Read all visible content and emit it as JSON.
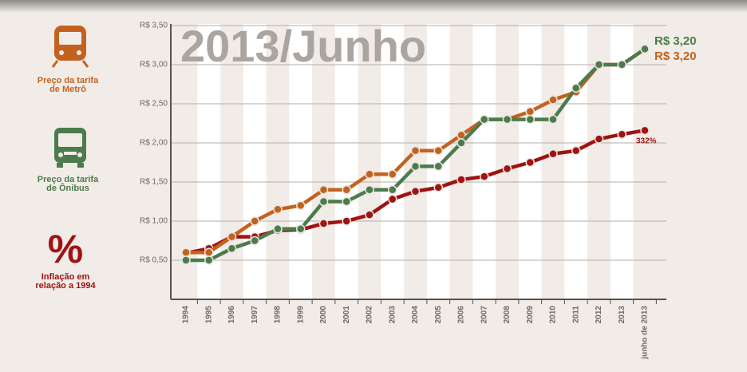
{
  "chart_data": {
    "type": "line",
    "title": "2013/Junho",
    "categories": [
      "1994",
      "1995",
      "1996",
      "1997",
      "1998",
      "1999",
      "2000",
      "2001",
      "2002",
      "2003",
      "2004",
      "2005",
      "2006",
      "2007",
      "2008",
      "2009",
      "2010",
      "2011",
      "2012",
      "2013",
      "junho de 2013"
    ],
    "ylim": [
      0,
      3.5
    ],
    "yticks": [
      {
        "value": 0.5,
        "label": "R$ 0,50"
      },
      {
        "value": 1.0,
        "label": "R$ 1,00"
      },
      {
        "value": 1.5,
        "label": "R$ 1,50"
      },
      {
        "value": 2.0,
        "label": "R$ 2,00"
      },
      {
        "value": 2.5,
        "label": "R$ 2,50"
      },
      {
        "value": 3.0,
        "label": "R$ 3,00"
      },
      {
        "value": 3.5,
        "label": "R$ 3,50"
      }
    ],
    "grid": true,
    "legend_symbol": "%",
    "series": [
      {
        "name": "Inflação em relação a 1994",
        "color": "#a01313",
        "end_label": "332%",
        "values": [
          0.59,
          0.65,
          0.8,
          0.8,
          0.88,
          0.89,
          0.97,
          1.0,
          1.08,
          1.28,
          1.38,
          1.43,
          1.53,
          1.57,
          1.67,
          1.75,
          1.86,
          1.9,
          2.05,
          2.11,
          2.16
        ]
      },
      {
        "name": "Preço da tarifa de Metrô",
        "color": "#c3621f",
        "end_label": "R$ 3,20",
        "values": [
          0.6,
          0.6,
          0.8,
          1.0,
          1.15,
          1.2,
          1.4,
          1.4,
          1.6,
          1.6,
          1.9,
          1.9,
          2.1,
          2.3,
          2.3,
          2.4,
          2.55,
          2.65,
          3.0,
          3.0,
          3.2
        ]
      },
      {
        "name": "Preço da tarifa de Ônibus",
        "color": "#4c7b4c",
        "end_label": "R$ 3,20",
        "values": [
          0.5,
          0.5,
          0.65,
          0.75,
          0.9,
          0.9,
          1.25,
          1.25,
          1.4,
          1.4,
          1.7,
          1.7,
          2.0,
          2.3,
          2.3,
          2.3,
          2.3,
          2.7,
          3.0,
          3.0,
          3.2
        ]
      }
    ]
  }
}
